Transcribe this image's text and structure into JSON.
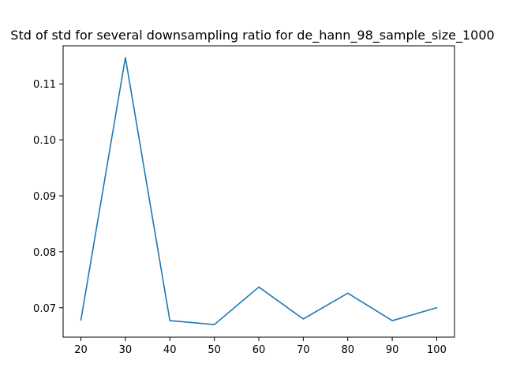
{
  "chart_data": {
    "type": "line",
    "title": "Std of std for several downsampling ratio for de_hann_98_sample_size_1000",
    "xlabel": "",
    "ylabel": "",
    "x": [
      20,
      30,
      40,
      50,
      60,
      70,
      80,
      90,
      100
    ],
    "series": [
      {
        "values": [
          0.0678,
          0.1147,
          0.0677,
          0.067,
          0.0737,
          0.068,
          0.0726,
          0.0677,
          0.07
        ],
        "color": "#1f77b4"
      }
    ],
    "xlim": [
      16,
      104
    ],
    "ylim": [
      0.06475,
      0.1168
    ],
    "xticks": [
      20,
      30,
      40,
      50,
      60,
      70,
      80,
      90,
      100
    ],
    "xtick_labels": [
      "20",
      "30",
      "40",
      "50",
      "60",
      "70",
      "80",
      "90",
      "100"
    ],
    "yticks": [
      0.07,
      0.08,
      0.09,
      0.1,
      0.11
    ],
    "ytick_labels": [
      "0.07",
      "0.08",
      "0.09",
      "0.10",
      "0.11"
    ],
    "grid": false,
    "legend": false
  }
}
